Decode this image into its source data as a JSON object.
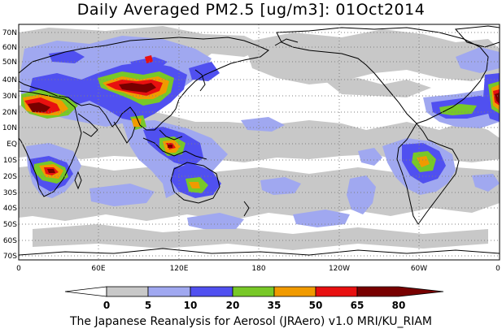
{
  "title": "Daily Averaged PM2.5 [ug/m3]: 01Oct2014",
  "credit": "The Japanese Reanalysis for Aerosol (JRAero) v1.0 MRI/KU_RIAM",
  "lat_labels": [
    "70N",
    "60N",
    "50N",
    "40N",
    "30N",
    "20N",
    "10N",
    "EQ",
    "10S",
    "20S",
    "30S",
    "40S",
    "50S",
    "60S",
    "70S"
  ],
  "lon_labels": [
    "0",
    "60E",
    "120E",
    "180",
    "120W",
    "60W",
    "0"
  ],
  "colorbar": {
    "ticks": [
      "0",
      "5",
      "10",
      "20",
      "35",
      "50",
      "65",
      "80"
    ],
    "colors": [
      "#ffffff",
      "#c8c8c8",
      "#a0a8f0",
      "#5050f0",
      "#78c828",
      "#f09a00",
      "#e81010",
      "#780000"
    ]
  }
}
